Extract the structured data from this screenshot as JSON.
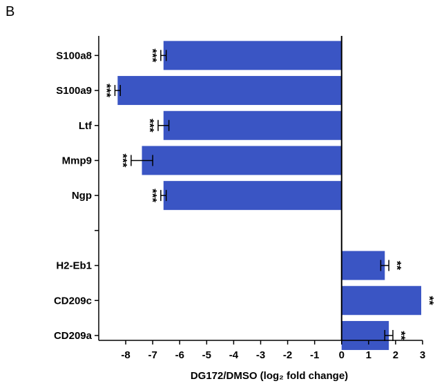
{
  "panel_label": "B",
  "chart_data": {
    "type": "bar",
    "orientation": "horizontal",
    "title": "",
    "xlabel": "DG172/DMSO (log₂ fold change)",
    "ylabel": "",
    "xlim": [
      -9,
      3
    ],
    "xticks": [
      -8,
      -7,
      -6,
      -5,
      -4,
      -3,
      -2,
      -1,
      0,
      1,
      2,
      3
    ],
    "grid": false,
    "bar_color": "#3a55c4",
    "categories": [
      "S100a8",
      "S100a9",
      "Ltf",
      "Mmp9",
      "Ngp",
      "",
      "H2-Eb1",
      "CD209c",
      "CD209a"
    ],
    "values": [
      -6.6,
      -8.3,
      -6.6,
      -7.4,
      -6.6,
      null,
      1.6,
      2.95,
      1.75
    ],
    "errors": [
      0.1,
      0.1,
      0.2,
      0.4,
      0.1,
      null,
      0.15,
      0,
      0.15
    ],
    "significance": [
      "***",
      "***",
      "***",
      "***",
      "***",
      "",
      "**",
      "**",
      "**"
    ]
  }
}
